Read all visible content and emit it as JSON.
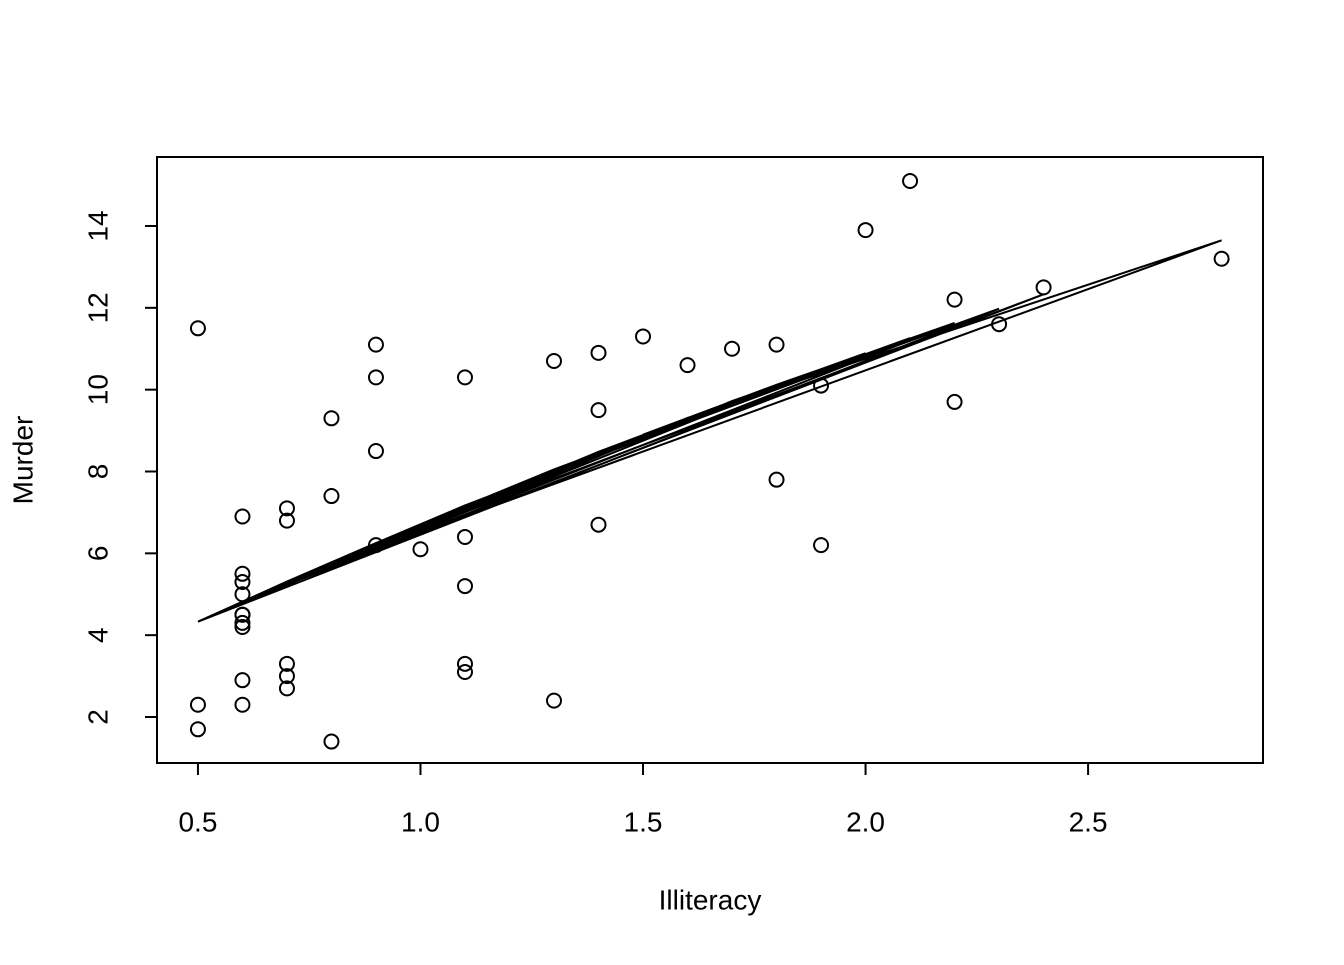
{
  "chart_data": {
    "type": "scatter",
    "x_label": "Illiteracy",
    "y_label": "Murder",
    "x": [
      2.1,
      1.5,
      1.8,
      1.9,
      1.1,
      0.7,
      1.1,
      0.9,
      1.3,
      2.0,
      1.9,
      0.6,
      0.9,
      0.7,
      0.5,
      0.6,
      1.6,
      2.8,
      0.7,
      0.9,
      1.1,
      0.9,
      0.6,
      2.4,
      0.8,
      0.6,
      0.6,
      0.5,
      0.7,
      1.1,
      2.2,
      1.4,
      1.8,
      0.8,
      0.8,
      1.1,
      0.6,
      1.0,
      1.3,
      2.3,
      0.5,
      1.7,
      2.2,
      0.6,
      0.6,
      1.4,
      0.6,
      1.4,
      0.7,
      0.6
    ],
    "values": [
      15.1,
      11.3,
      7.8,
      10.1,
      10.3,
      6.8,
      3.1,
      6.2,
      10.7,
      13.9,
      6.2,
      5.3,
      10.3,
      7.1,
      2.3,
      4.5,
      10.6,
      13.2,
      2.7,
      8.5,
      3.3,
      11.1,
      2.3,
      12.5,
      9.3,
      5.0,
      2.9,
      11.5,
      3.3,
      5.2,
      9.7,
      10.9,
      11.1,
      1.4,
      7.4,
      6.4,
      4.2,
      6.1,
      2.4,
      11.6,
      1.7,
      11.0,
      12.2,
      4.5,
      5.5,
      9.5,
      4.3,
      6.7,
      3.0,
      6.9
    ],
    "fitted": [
      11.26,
      8.9,
      10.12,
      10.5,
      7.17,
      5.31,
      7.17,
      6.25,
      8.05,
      10.89,
      10.5,
      4.82,
      6.25,
      5.31,
      4.33,
      4.82,
      9.31,
      13.65,
      5.31,
      6.25,
      7.17,
      6.25,
      4.82,
      12.33,
      5.78,
      4.82,
      4.82,
      4.33,
      5.31,
      7.17,
      11.63,
      8.48,
      10.12,
      5.78,
      5.78,
      7.17,
      4.82,
      6.71,
      8.05,
      11.98,
      4.33,
      9.72,
      11.63,
      4.82,
      4.82,
      8.48,
      4.82,
      8.48,
      5.31,
      4.82
    ],
    "color": "#000000",
    "xlim": [
      0.408,
      2.893
    ],
    "ylim": [
      0.876,
      15.686
    ],
    "xticks": [
      0.5,
      {
        "value": 1,
        "label": "1.0"
      },
      1.5,
      {
        "value": 2,
        "label": "2.0"
      },
      2.5
    ],
    "yticks": [
      2,
      4,
      6,
      8,
      10,
      12,
      14
    ]
  }
}
